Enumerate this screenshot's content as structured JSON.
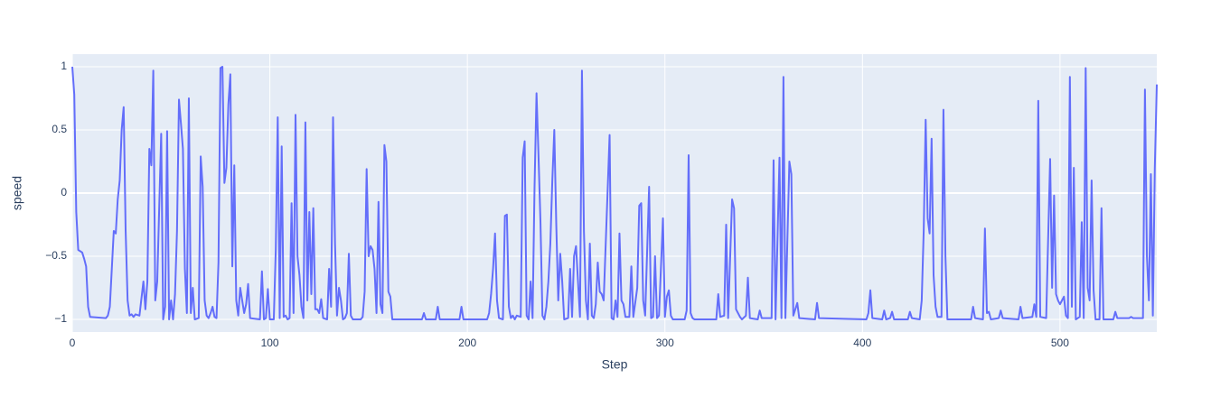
{
  "chart_data": {
    "type": "line",
    "x_label": "Step",
    "y_label": "speed",
    "color": "#636efa",
    "grid": true,
    "xlim": [
      0,
      549
    ],
    "ylim": [
      -1.1,
      1.1
    ],
    "xticks": [
      0,
      100,
      200,
      300,
      400,
      500
    ],
    "yticks": [
      {
        "value": -1,
        "label": "−1"
      },
      {
        "value": -0.5,
        "label": "−0.5"
      },
      0,
      0.5,
      1
    ],
    "x": [
      0,
      1,
      2,
      3,
      5,
      6,
      7,
      8,
      9,
      17,
      18,
      19,
      20,
      21,
      22,
      23,
      24,
      25,
      26,
      27,
      28,
      29,
      30,
      31,
      32,
      34,
      36,
      37,
      38,
      39,
      40,
      41,
      42,
      43,
      45,
      46,
      47,
      48,
      49,
      50,
      51,
      52,
      53,
      54,
      55,
      56,
      57,
      58,
      59,
      60,
      61,
      62,
      64,
      65,
      66,
      67,
      68,
      69,
      70,
      71,
      72,
      73,
      74,
      75,
      76,
      77,
      78,
      79,
      80,
      81,
      82,
      83,
      84,
      85,
      86,
      87,
      88,
      89,
      90,
      95,
      96,
      97,
      98,
      99,
      100,
      102,
      103,
      104,
      105,
      106,
      107,
      108,
      109,
      110,
      111,
      112,
      113,
      114,
      115,
      116,
      117,
      118,
      119,
      120,
      121,
      122,
      123,
      124,
      125,
      126,
      127,
      129,
      130,
      131,
      132,
      133,
      134,
      135,
      136,
      137,
      138,
      139,
      140,
      141,
      142,
      146,
      147,
      148,
      149,
      150,
      151,
      152,
      153,
      154,
      155,
      156,
      157,
      158,
      159,
      160,
      161,
      162,
      177,
      178,
      179,
      184,
      185,
      186,
      196,
      197,
      198,
      210,
      211,
      212,
      213,
      214,
      215,
      216,
      218,
      219,
      220,
      221,
      222,
      223,
      224,
      225,
      227,
      228,
      229,
      230,
      231,
      232,
      233,
      234,
      235,
      236,
      237,
      238,
      239,
      240,
      241,
      242,
      243,
      244,
      245,
      246,
      247,
      248,
      249,
      251,
      252,
      253,
      254,
      255,
      257,
      258,
      259,
      260,
      261,
      262,
      263,
      264,
      265,
      266,
      267,
      268,
      269,
      272,
      273,
      274,
      275,
      276,
      277,
      278,
      279,
      280,
      282,
      283,
      284,
      286,
      287,
      288,
      289,
      290,
      292,
      293,
      294,
      295,
      296,
      297,
      299,
      300,
      301,
      302,
      303,
      304,
      310,
      311,
      312,
      313,
      314,
      315,
      326,
      327,
      328,
      330,
      331,
      332,
      334,
      335,
      336,
      337,
      338,
      339,
      341,
      342,
      343,
      347,
      348,
      349,
      354,
      355,
      356,
      358,
      359,
      360,
      361,
      363,
      364,
      365,
      367,
      368,
      376,
      377,
      378,
      402,
      403,
      404,
      405,
      410,
      411,
      412,
      414,
      415,
      416,
      423,
      424,
      425,
      429,
      430,
      431,
      432,
      433,
      434,
      435,
      436,
      437,
      438,
      440,
      441,
      442,
      443,
      455,
      456,
      457,
      461,
      462,
      463,
      464,
      465,
      469,
      470,
      471,
      479,
      480,
      481,
      486,
      487,
      488,
      489,
      490,
      493,
      495,
      496,
      497,
      498,
      499,
      500,
      501,
      502,
      503,
      504,
      505,
      506,
      507,
      508,
      510,
      511,
      512,
      513,
      514,
      515,
      516,
      517,
      518,
      520,
      521,
      522,
      527,
      528,
      529,
      535,
      536,
      537,
      542,
      543,
      544,
      545,
      546,
      547,
      548,
      549
    ],
    "values": [
      1,
      0.78,
      -0.15,
      -0.45,
      -0.47,
      -0.52,
      -0.58,
      -0.9,
      -0.98,
      -0.99,
      -0.97,
      -0.9,
      -0.6,
      -0.3,
      -0.32,
      -0.05,
      0.1,
      0.5,
      0.68,
      -0.3,
      -0.85,
      -0.97,
      -0.96,
      -0.98,
      -0.96,
      -0.97,
      -0.7,
      -0.92,
      -0.7,
      0.35,
      0.22,
      0.97,
      -0.85,
      -0.7,
      0.47,
      -1,
      -0.9,
      0.49,
      -1,
      -0.85,
      -1,
      -0.8,
      -0.3,
      0.74,
      0.55,
      0.35,
      -0.6,
      -0.95,
      0.75,
      -0.95,
      -0.75,
      -1,
      -0.99,
      0.29,
      0.05,
      -0.85,
      -0.97,
      -0.99,
      -0.95,
      -0.9,
      -0.98,
      -0.99,
      -0.55,
      0.99,
      1,
      0.08,
      0.2,
      0.7,
      0.94,
      -0.58,
      0.22,
      -0.85,
      -0.97,
      -0.75,
      -0.85,
      -0.95,
      -0.88,
      -0.72,
      -0.99,
      -1,
      -0.62,
      -1,
      -0.99,
      -0.76,
      -1,
      -1,
      -0.45,
      0.6,
      -0.99,
      0.37,
      -0.98,
      -0.97,
      -1,
      -0.99,
      -0.08,
      -0.95,
      0.62,
      -0.5,
      -0.65,
      -0.9,
      -0.99,
      0.56,
      -0.85,
      -0.15,
      -0.8,
      -0.12,
      -0.92,
      -0.92,
      -0.95,
      -0.84,
      -0.99,
      -1,
      -0.6,
      -0.9,
      0.6,
      -0.4,
      -0.97,
      -0.75,
      -0.85,
      -1,
      -0.99,
      -0.95,
      -0.48,
      -0.97,
      -1,
      -1,
      -0.98,
      -0.78,
      0.19,
      -0.5,
      -0.42,
      -0.45,
      -0.6,
      -0.95,
      -0.07,
      -0.88,
      -0.95,
      0.38,
      0.25,
      -0.78,
      -0.82,
      -1,
      -1,
      -0.95,
      -1,
      -1,
      -0.9,
      -1,
      -1,
      -0.9,
      -1,
      -1,
      -0.95,
      -0.8,
      -0.6,
      -0.32,
      -0.85,
      -0.99,
      -1,
      -0.18,
      -0.17,
      -0.9,
      -0.99,
      -0.97,
      -1,
      -0.97,
      -0.98,
      0.28,
      0.41,
      -0.97,
      -1,
      -0.7,
      -0.99,
      0.05,
      0.79,
      0.3,
      -0.23,
      -0.97,
      -1,
      -0.9,
      -0.7,
      -0.4,
      0.1,
      0.5,
      -0.25,
      -0.85,
      -0.48,
      -0.7,
      -1,
      -0.99,
      -0.6,
      -0.98,
      -0.5,
      -0.42,
      -0.98,
      0.97,
      -0.3,
      -0.85,
      -1,
      -0.4,
      -0.97,
      -0.99,
      -0.88,
      -0.55,
      -0.78,
      -0.8,
      -0.85,
      0.46,
      -0.99,
      -1,
      -0.85,
      -0.98,
      -0.32,
      -0.85,
      -0.88,
      -0.98,
      -0.98,
      -0.58,
      -0.98,
      -0.75,
      -0.1,
      -0.08,
      -0.85,
      -0.97,
      0.05,
      -0.99,
      -0.98,
      -0.5,
      -0.99,
      -0.97,
      -0.2,
      -0.98,
      -0.82,
      -0.77,
      -0.97,
      -1,
      -1,
      -0.93,
      0.3,
      -0.95,
      -0.99,
      -1,
      -1,
      -0.8,
      -0.98,
      -0.97,
      -0.25,
      -0.99,
      -0.05,
      -0.12,
      -0.92,
      -0.95,
      -0.98,
      -1,
      -0.97,
      -0.67,
      -0.99,
      -1,
      -0.93,
      -0.99,
      -0.99,
      0.26,
      -1,
      0.28,
      -0.99,
      0.92,
      -0.99,
      0.25,
      0.15,
      -0.97,
      -0.87,
      -0.99,
      -1,
      -0.87,
      -0.99,
      -1,
      -0.95,
      -0.77,
      -0.99,
      -1,
      -0.93,
      -1,
      -0.99,
      -0.94,
      -1,
      -1,
      -0.94,
      -0.99,
      -1,
      -0.85,
      -0.3,
      0.58,
      -0.2,
      -0.32,
      0.43,
      -0.65,
      -0.9,
      -0.98,
      -0.98,
      0.66,
      -0.5,
      -1,
      -1,
      -0.9,
      -0.99,
      -1,
      -0.28,
      -0.95,
      -0.94,
      -1,
      -0.99,
      -0.93,
      -0.99,
      -1,
      -0.9,
      -0.99,
      -0.98,
      -0.88,
      -0.98,
      0.73,
      -0.98,
      -0.99,
      0.27,
      -0.75,
      -0.02,
      -0.8,
      -0.85,
      -0.88,
      -0.85,
      -0.82,
      -0.97,
      -0.99,
      0.92,
      -0.9,
      0.2,
      -1,
      -0.98,
      -0.23,
      -0.99,
      0.99,
      -0.75,
      -0.85,
      0.1,
      -0.77,
      -1,
      -1,
      -0.12,
      -1,
      -1,
      -0.94,
      -0.99,
      -0.99,
      -0.98,
      -0.99,
      -0.99,
      0.82,
      -0.5,
      -0.85,
      0.15,
      -0.97,
      0.2,
      0.86
    ]
  }
}
